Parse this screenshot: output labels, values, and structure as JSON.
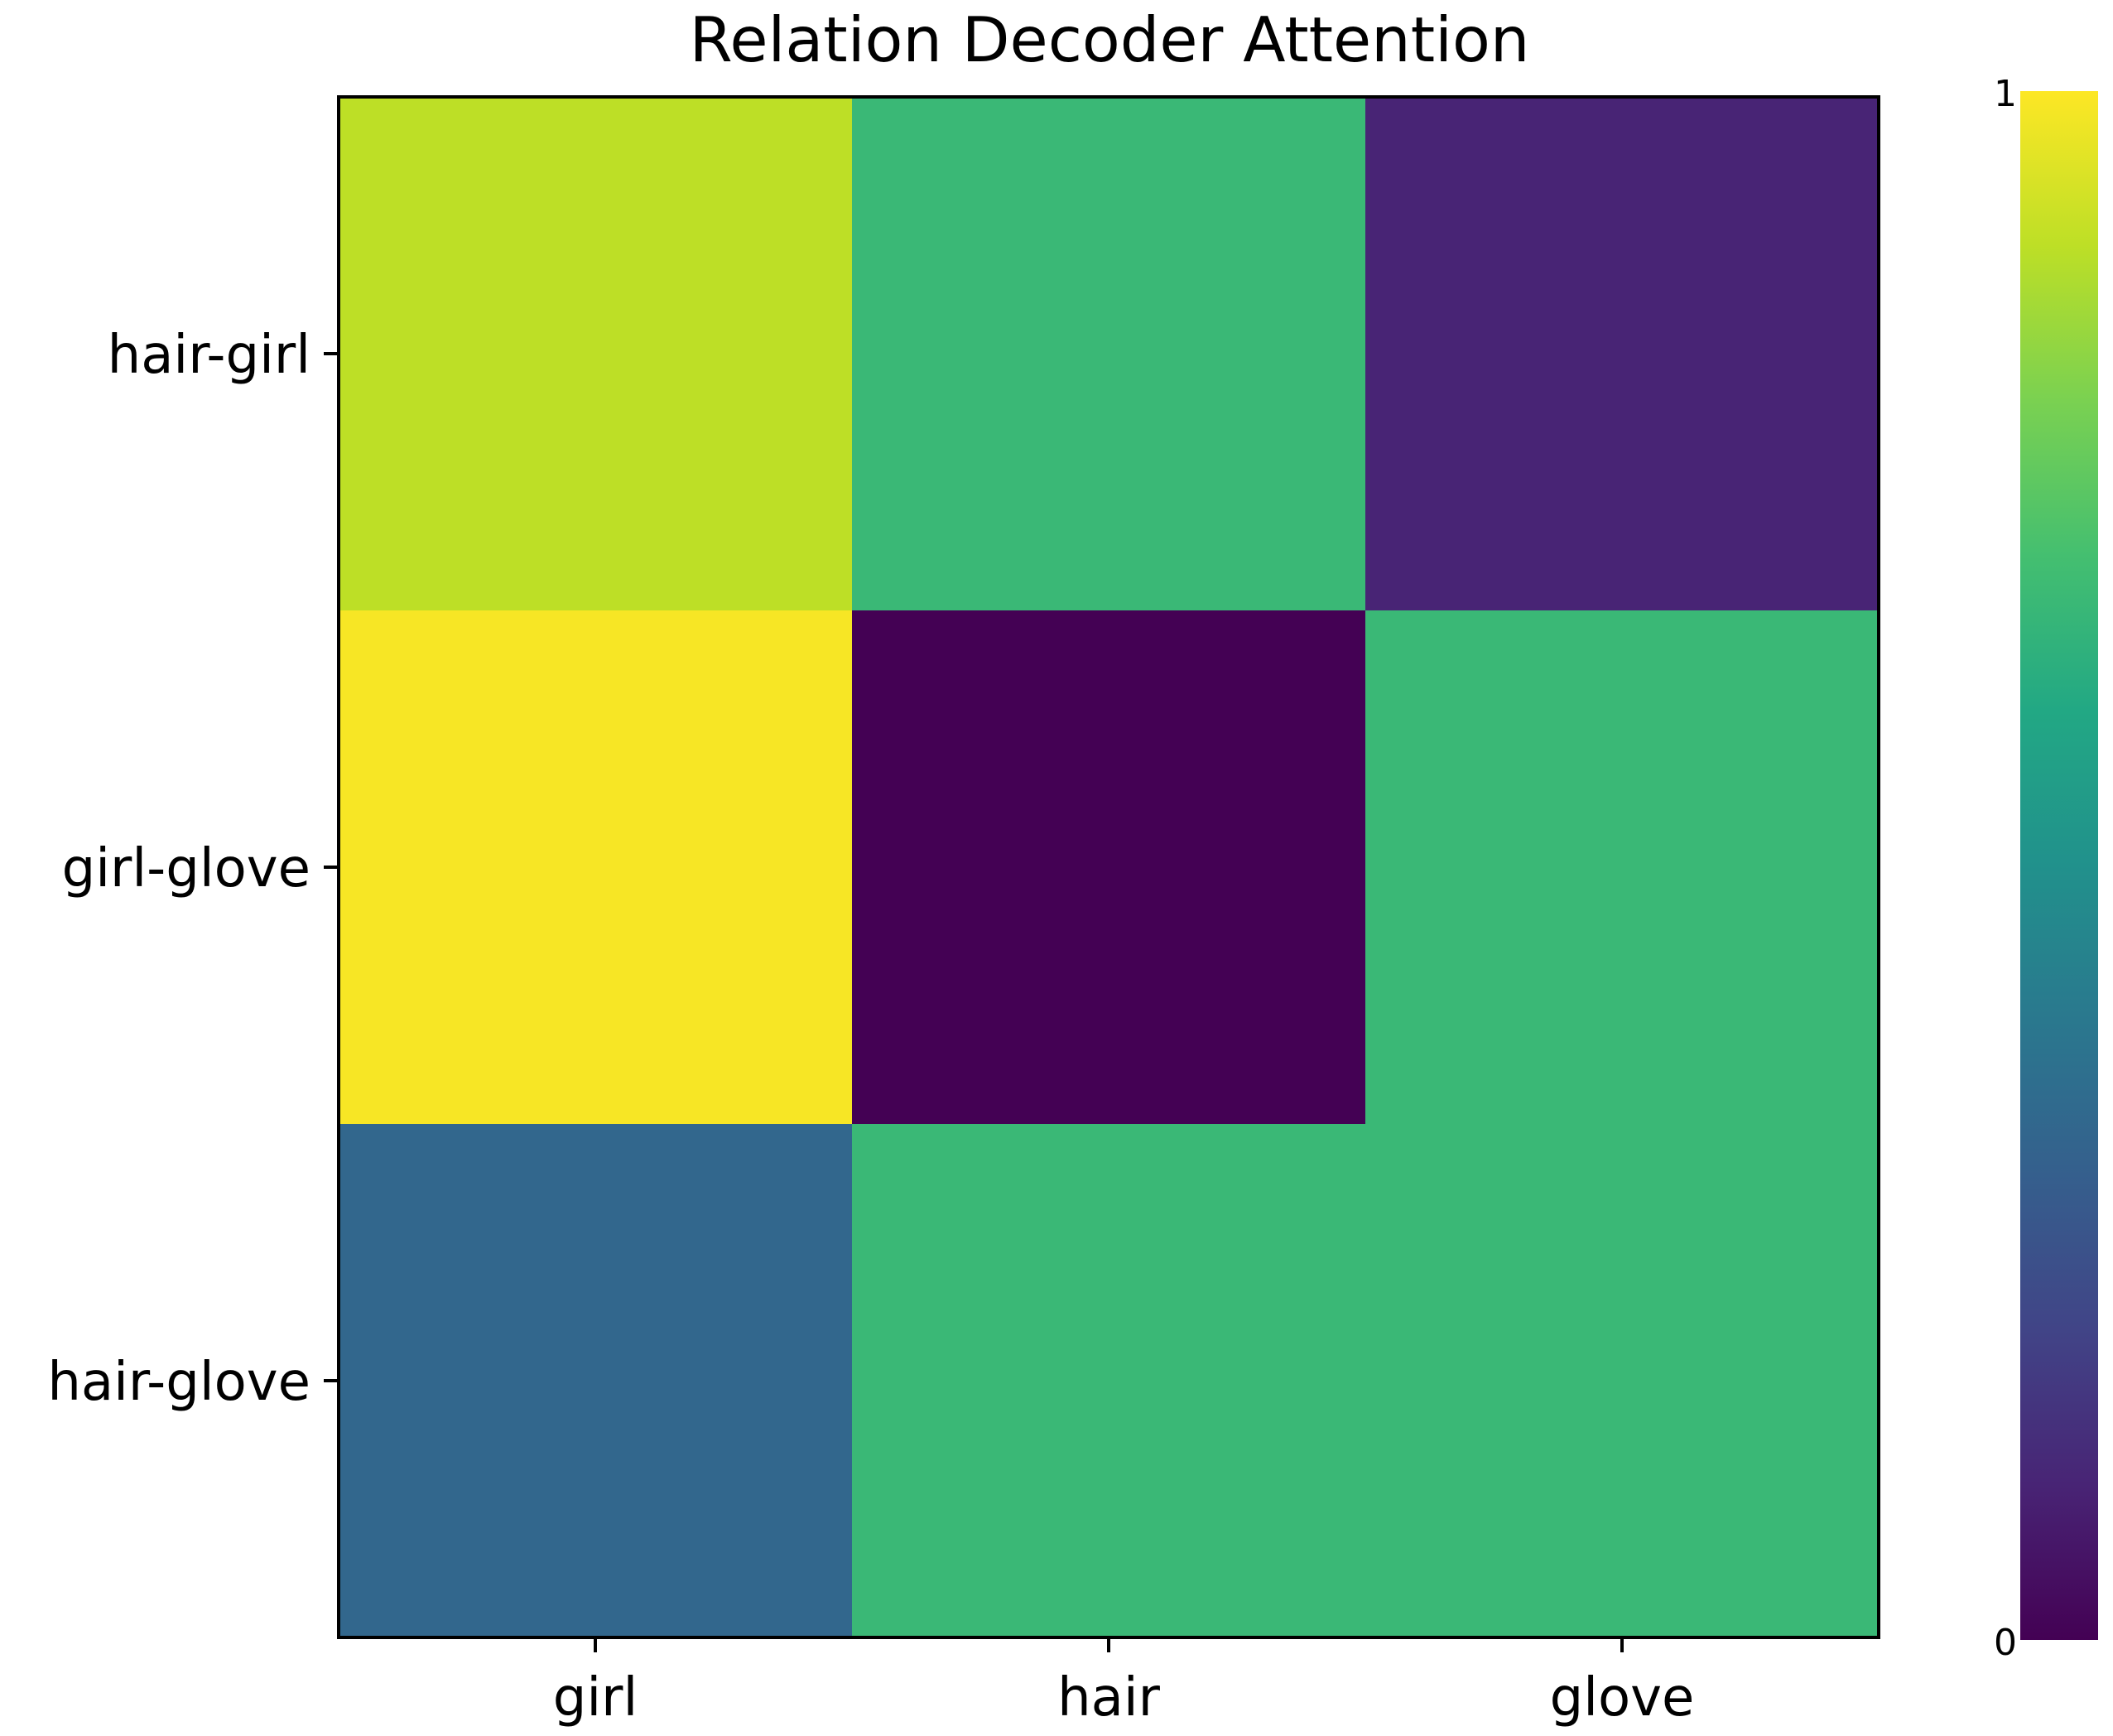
{
  "chart_data": {
    "type": "heatmap",
    "title": "Relation Decoder Attention",
    "x_categories": [
      "girl",
      "hair",
      "glove"
    ],
    "y_categories": [
      "hair-girl",
      "girl-glove",
      "hair-glove"
    ],
    "values": [
      [
        0.9,
        0.67,
        0.1
      ],
      [
        0.99,
        0.0,
        0.67
      ],
      [
        0.33,
        0.67,
        0.67
      ]
    ],
    "colorscale": "viridis",
    "colorbar": {
      "min": 0,
      "max": 1,
      "min_label": "0",
      "max_label": "1"
    },
    "colors": {
      "axis": "#000000",
      "background": "#ffffff"
    },
    "grid": false,
    "legend": "colorbar-right"
  }
}
